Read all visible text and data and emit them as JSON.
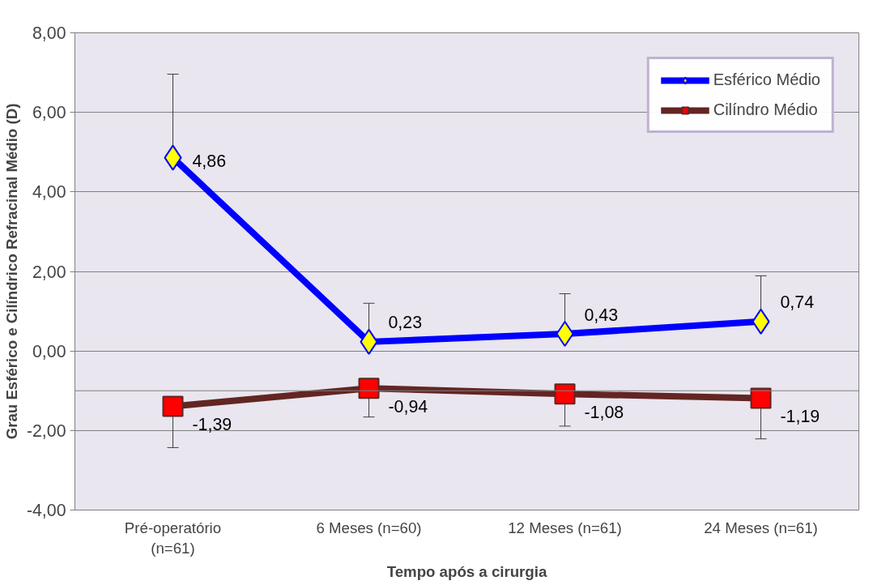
{
  "chart_data": {
    "type": "line",
    "xlabel": "Tempo após a cirurgia",
    "ylabel": "Grau Esférico e Cilíndrico Refracinal Médio (D)",
    "categories": [
      "Pré-operatório\n(n=61)",
      "6 Meses (n=60)",
      "12 Meses (n=61)",
      "24 Meses (n=61)"
    ],
    "series": [
      {
        "name": "Esférico Médio",
        "color": "#0000ff",
        "marker": "diamond",
        "values": [
          4.86,
          0.23,
          0.43,
          0.74
        ],
        "value_labels": [
          "4,86",
          "0,23",
          "0,43",
          "0,74"
        ],
        "errors": [
          [
            4.86,
            6.96
          ],
          [
            0.23,
            1.2
          ],
          [
            0.43,
            1.44
          ],
          [
            0.74,
            1.89
          ]
        ]
      },
      {
        "name": "Cilíndro Médio",
        "color": "#632523",
        "marker": "square",
        "values": [
          -1.39,
          -0.94,
          -1.08,
          -1.19
        ],
        "value_labels": [
          "-1,39",
          "-0,94",
          "-1,08",
          "-1,19"
        ],
        "errors": [
          [
            -2.43,
            -1.39
          ],
          [
            -1.66,
            -0.94
          ],
          [
            -1.89,
            -1.08
          ],
          [
            -2.21,
            -1.19
          ]
        ]
      }
    ],
    "ylim": [
      -4,
      8
    ],
    "yticks": [
      {
        "value": -4,
        "label": "-4,00"
      },
      {
        "value": -2,
        "label": "-2,00"
      },
      {
        "value": 0,
        "label": "0,00"
      },
      {
        "value": 2,
        "label": "2,00"
      },
      {
        "value": 4,
        "label": "4,00"
      },
      {
        "value": 6,
        "label": "6,00"
      },
      {
        "value": 8,
        "label": "8,00"
      }
    ],
    "ref_lines": [
      {
        "axis": "y",
        "value": -1,
        "label": null,
        "color": "#808080"
      }
    ],
    "grid": "y",
    "legend": "top right"
  }
}
